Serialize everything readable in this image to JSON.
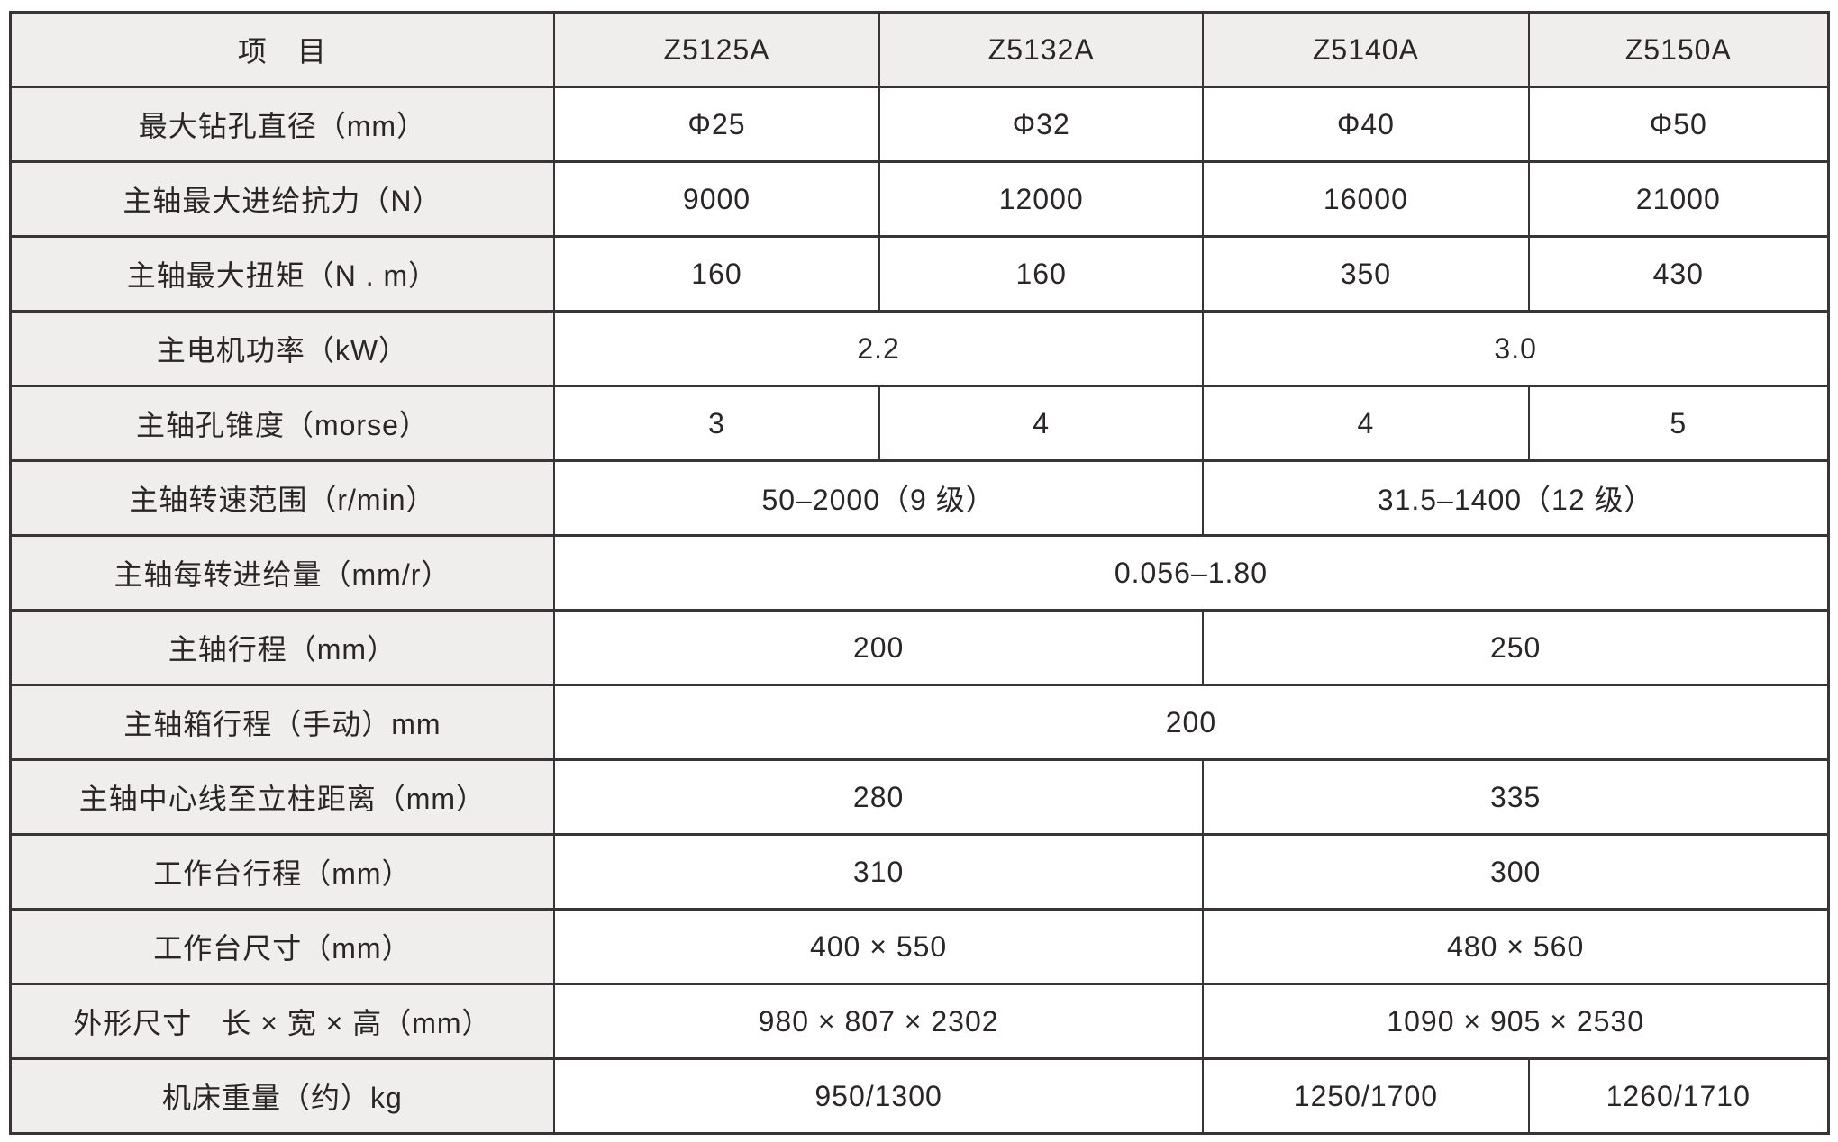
{
  "table": {
    "colors": {
      "border": "#393536",
      "shaded_bg": "#efeeec",
      "value_bg": "#ffffff",
      "text": "#2a2627"
    },
    "header": {
      "item_label": "项　目",
      "models": [
        "Z5125A",
        "Z5132A",
        "Z5140A",
        "Z5150A"
      ]
    },
    "rows": [
      {
        "label": "最大钻孔直径（mm）",
        "values": [
          "Φ25",
          "Φ32",
          "Φ40",
          "Φ50"
        ]
      },
      {
        "label": "主轴最大进给抗力（N）",
        "values": [
          "9000",
          "12000",
          "16000",
          "21000"
        ]
      },
      {
        "label": "主轴最大扭矩（N . m）",
        "values": [
          "160",
          "160",
          "350",
          "430"
        ]
      },
      {
        "label": "主电机功率（kW）",
        "values": [
          "2.2",
          "3.0"
        ]
      },
      {
        "label": "主轴孔锥度（morse）",
        "values": [
          "3",
          "4",
          "4",
          "5"
        ]
      },
      {
        "label": "主轴转速范围（r/min）",
        "values": [
          "50–2000（9 级）",
          "31.5–1400（12 级）"
        ]
      },
      {
        "label": "主轴每转进给量（mm/r）",
        "values": [
          "0.056–1.80"
        ]
      },
      {
        "label": "主轴行程（mm）",
        "values": [
          "200",
          "250"
        ]
      },
      {
        "label": "主轴箱行程（手动）mm",
        "values": [
          "200"
        ]
      },
      {
        "label": "主轴中心线至立柱距离（mm）",
        "values": [
          "280",
          "335"
        ]
      },
      {
        "label": "工作台行程（mm）",
        "values": [
          "310",
          "300"
        ]
      },
      {
        "label": "工作台尺寸（mm）",
        "values": [
          "400 × 550",
          "480 × 560"
        ]
      },
      {
        "label": "外形尺寸　长 × 宽 × 高（mm）",
        "values": [
          "980 × 807 × 2302",
          "1090 × 905 × 2530"
        ]
      },
      {
        "label": "机床重量（约）kg",
        "values": [
          "950/1300",
          "1250/1700",
          "1260/1710"
        ]
      }
    ]
  }
}
